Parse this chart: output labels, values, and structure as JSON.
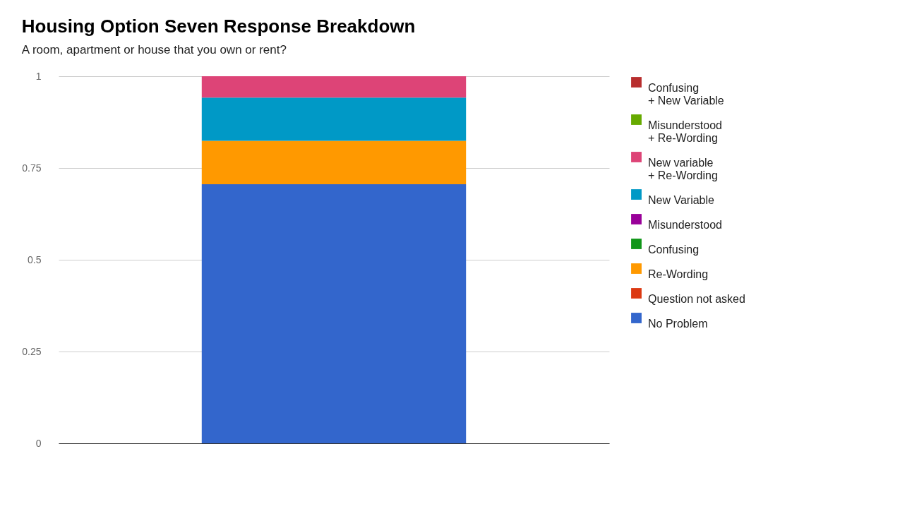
{
  "chart_data": {
    "type": "bar",
    "title": "Housing Option Seven Response Breakdown",
    "subtitle": "A room, apartment or house that you own or rent?",
    "categories": [
      null
    ],
    "stacked": true,
    "ylim": [
      0,
      1
    ],
    "yticks": [
      0,
      0.25,
      0.5,
      0.75,
      1
    ],
    "grid": "y",
    "legend": "right",
    "tick_labels": "y",
    "series": [
      {
        "name": "No Problem",
        "color": "#3366cc",
        "values": [
          0.706
        ]
      },
      {
        "name": "Question not asked",
        "color": "#dc3912",
        "values": [
          0
        ]
      },
      {
        "name": "Re-Wording",
        "color": "#ff9900",
        "values": [
          0.118
        ]
      },
      {
        "name": "Confusing",
        "color": "#109618",
        "values": [
          0
        ]
      },
      {
        "name": "Misunderstood",
        "color": "#990099",
        "values": [
          0
        ]
      },
      {
        "name": "New Variable",
        "color": "#0099c6",
        "values": [
          0.118
        ]
      },
      {
        "name": "New variable\n+ Re-Wording",
        "color": "#dd4477",
        "values": [
          0.058
        ]
      },
      {
        "name": "Misunderstood\n + Re-Wording",
        "color": "#66aa00",
        "values": [
          0
        ]
      },
      {
        "name": "Confusing\n+ New Variable",
        "color": "#b82e2e",
        "values": [
          0
        ]
      }
    ]
  }
}
